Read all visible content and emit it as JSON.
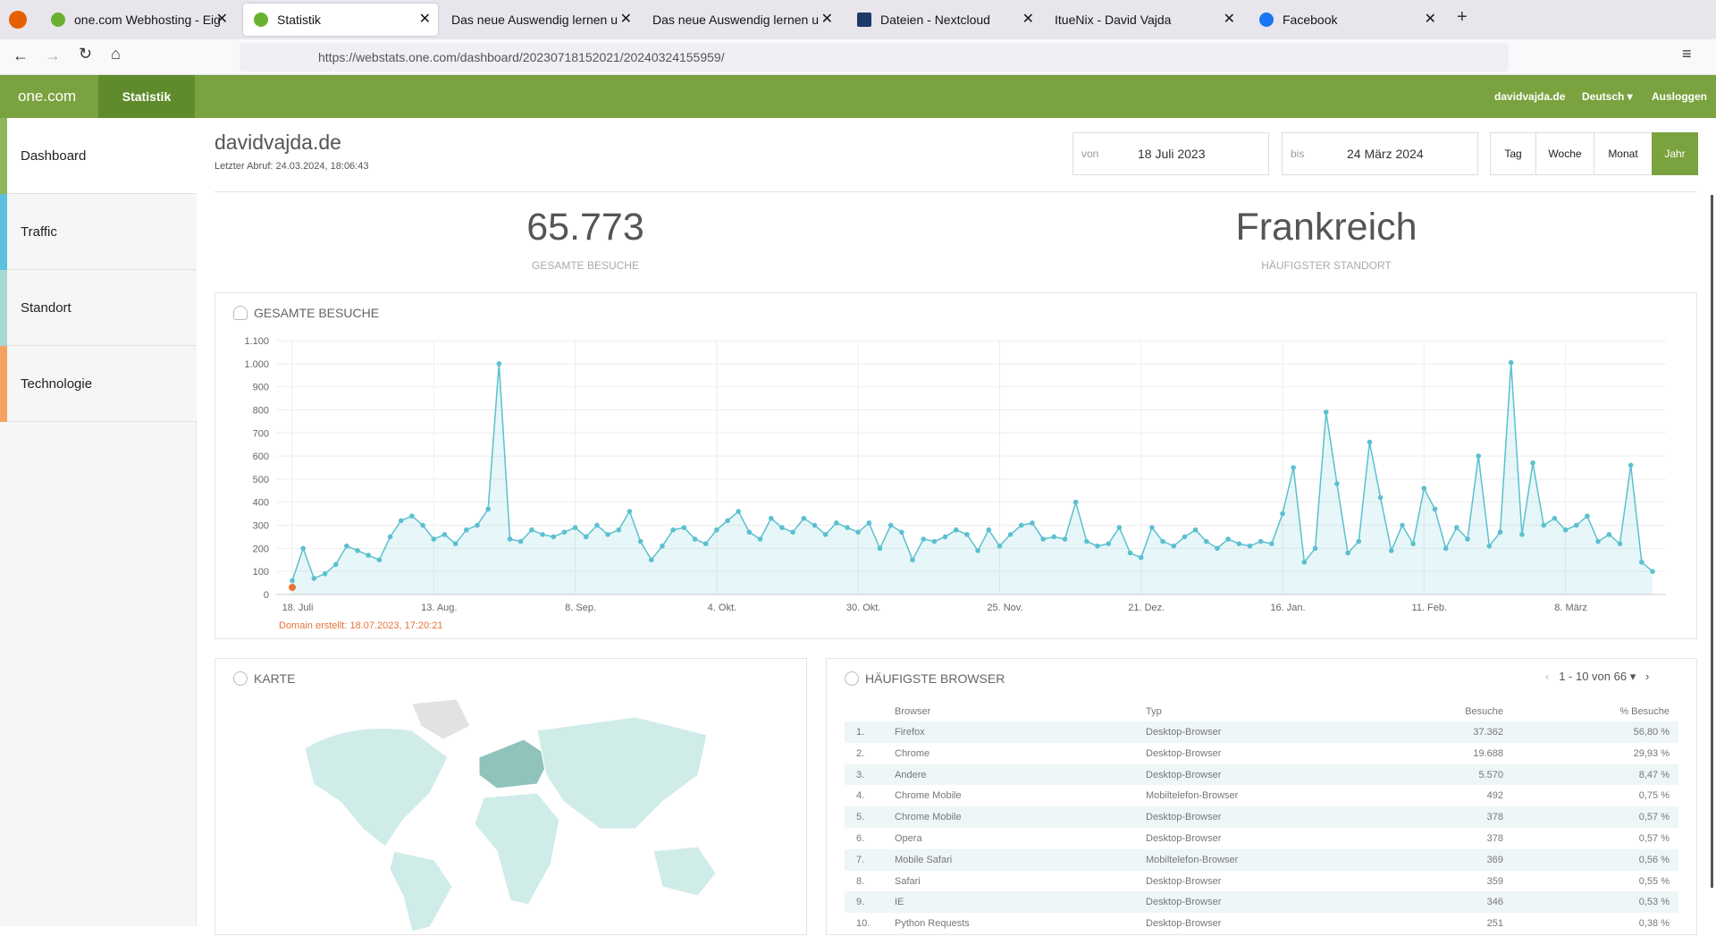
{
  "browser": {
    "tabs": [
      "one.com Webhosting - Eig",
      "Statistik",
      "Das neue Auswendig lernen u",
      "Das neue Auswendig lernen u",
      "Dateien - Nextcloud",
      "ItueNix - David Vajda",
      "Facebook"
    ],
    "url": "https://webstats.one.com/dashboard/20230718152021/20240324155959/"
  },
  "header": {
    "brand": "one.com",
    "section": "Statistik",
    "domain": "davidvajda.de",
    "language": "Deutsch",
    "logout": "Ausloggen"
  },
  "sidebar": [
    "Dashboard",
    "Traffic",
    "Standort",
    "Technologie"
  ],
  "page": {
    "title": "davidvajda.de",
    "last_fetch": "Letzter Abruf: 24.03.2024, 18:06:43",
    "from_label": "von",
    "from": "18 Juli 2023",
    "to_label": "bis",
    "to": "24 März 2024",
    "periods": [
      "Tag",
      "Woche",
      "Monat",
      "Jahr"
    ]
  },
  "stats": [
    {
      "value": "65.773",
      "label": "GESAMTE BESUCHE"
    },
    {
      "value": "Frankreich",
      "label": "HÄUFIGSTER STANDORT"
    }
  ],
  "chart_data": {
    "type": "line",
    "title": "GESAMTE BESUCHE",
    "color": "#5bc0d0",
    "categories": [
      "18. Juli",
      null,
      null,
      null,
      null,
      null,
      null,
      null,
      null,
      null,
      null,
      null,
      null,
      "13. Aug.",
      null,
      null,
      null,
      null,
      null,
      null,
      null,
      null,
      null,
      null,
      null,
      null,
      "8. Sep.",
      null,
      null,
      null,
      null,
      null,
      null,
      null,
      null,
      null,
      null,
      null,
      null,
      "4. Okt.",
      null,
      null,
      null,
      null,
      null,
      null,
      null,
      null,
      null,
      null,
      null,
      null,
      "30. Okt.",
      null,
      null,
      null,
      null,
      null,
      null,
      null,
      null,
      null,
      null,
      null,
      null,
      "25. Nov.",
      null,
      null,
      null,
      null,
      null,
      null,
      null,
      null,
      null,
      null,
      null,
      null,
      "21. Dez.",
      null,
      null,
      null,
      null,
      null,
      null,
      null,
      null,
      null,
      null,
      null,
      null,
      "16. Jan.",
      null,
      null,
      null,
      null,
      null,
      null,
      null,
      null,
      null,
      null,
      null,
      null,
      "11. Feb.",
      null,
      null,
      null,
      null,
      null,
      null,
      null,
      null,
      null,
      null,
      null,
      null,
      "8. März",
      null,
      null,
      null,
      null,
      null,
      null,
      null,
      null
    ],
    "values": [
      60,
      200,
      70,
      90,
      130,
      210,
      190,
      170,
      150,
      250,
      320,
      340,
      300,
      240,
      260,
      220,
      280,
      300,
      370,
      1000,
      240,
      230,
      280,
      260,
      250,
      270,
      290,
      250,
      300,
      260,
      280,
      360,
      230,
      150,
      210,
      280,
      290,
      240,
      220,
      280,
      320,
      360,
      270,
      240,
      330,
      290,
      270,
      330,
      300,
      260,
      310,
      290,
      270,
      310,
      200,
      300,
      270,
      150,
      240,
      230,
      250,
      280,
      260,
      190,
      280,
      210,
      260,
      300,
      310,
      240,
      250,
      240,
      400,
      230,
      210,
      220,
      290,
      180,
      160,
      290,
      230,
      210,
      250,
      280,
      230,
      200,
      240,
      220,
      210,
      230,
      220,
      350,
      550,
      140,
      200,
      790,
      480,
      180,
      230,
      660,
      420,
      190,
      300,
      220,
      460,
      370,
      200,
      290,
      240,
      600,
      210,
      270,
      1005,
      260,
      570,
      300,
      330,
      280,
      300,
      340,
      230,
      260,
      220,
      560,
      140,
      100
    ],
    "ylim": [
      0,
      1100
    ],
    "yticks": [
      0,
      100,
      200,
      300,
      400,
      500,
      600,
      700,
      800,
      900,
      {
        "value": 1000,
        "label": "1.000"
      },
      {
        "value": 1100,
        "label": "1.100"
      }
    ],
    "grid": true,
    "annotation": "Domain erstellt: 18.07.2023, 17:20:21"
  },
  "map": {
    "title": "KARTE"
  },
  "browsers": {
    "title": "HÄUFIGSTE BROWSER",
    "pagination": "1 - 10 von 66",
    "columns": [
      "Browser",
      "Typ",
      "Besuche",
      "% Besuche"
    ],
    "rows": [
      [
        "1.",
        "Firefox",
        "Desktop-Browser",
        "37.362",
        "56,80 %"
      ],
      [
        "2.",
        "Chrome",
        "Desktop-Browser",
        "19.688",
        "29,93 %"
      ],
      [
        "3.",
        "Andere",
        "Desktop-Browser",
        "5.570",
        "8,47 %"
      ],
      [
        "4.",
        "Chrome Mobile",
        "Mobiltelefon-Browser",
        "492",
        "0,75 %"
      ],
      [
        "5.",
        "Chrome Mobile",
        "Desktop-Browser",
        "378",
        "0,57 %"
      ],
      [
        "6.",
        "Opera",
        "Desktop-Browser",
        "378",
        "0,57 %"
      ],
      [
        "7.",
        "Mobile Safari",
        "Mobiltelefon-Browser",
        "369",
        "0,56 %"
      ],
      [
        "8.",
        "Safari",
        "Desktop-Browser",
        "359",
        "0,55 %"
      ],
      [
        "9.",
        "IE",
        "Desktop-Browser",
        "346",
        "0,53 %"
      ],
      [
        "10.",
        "Python Requests",
        "Desktop-Browser",
        "251",
        "0,38 %"
      ]
    ]
  }
}
